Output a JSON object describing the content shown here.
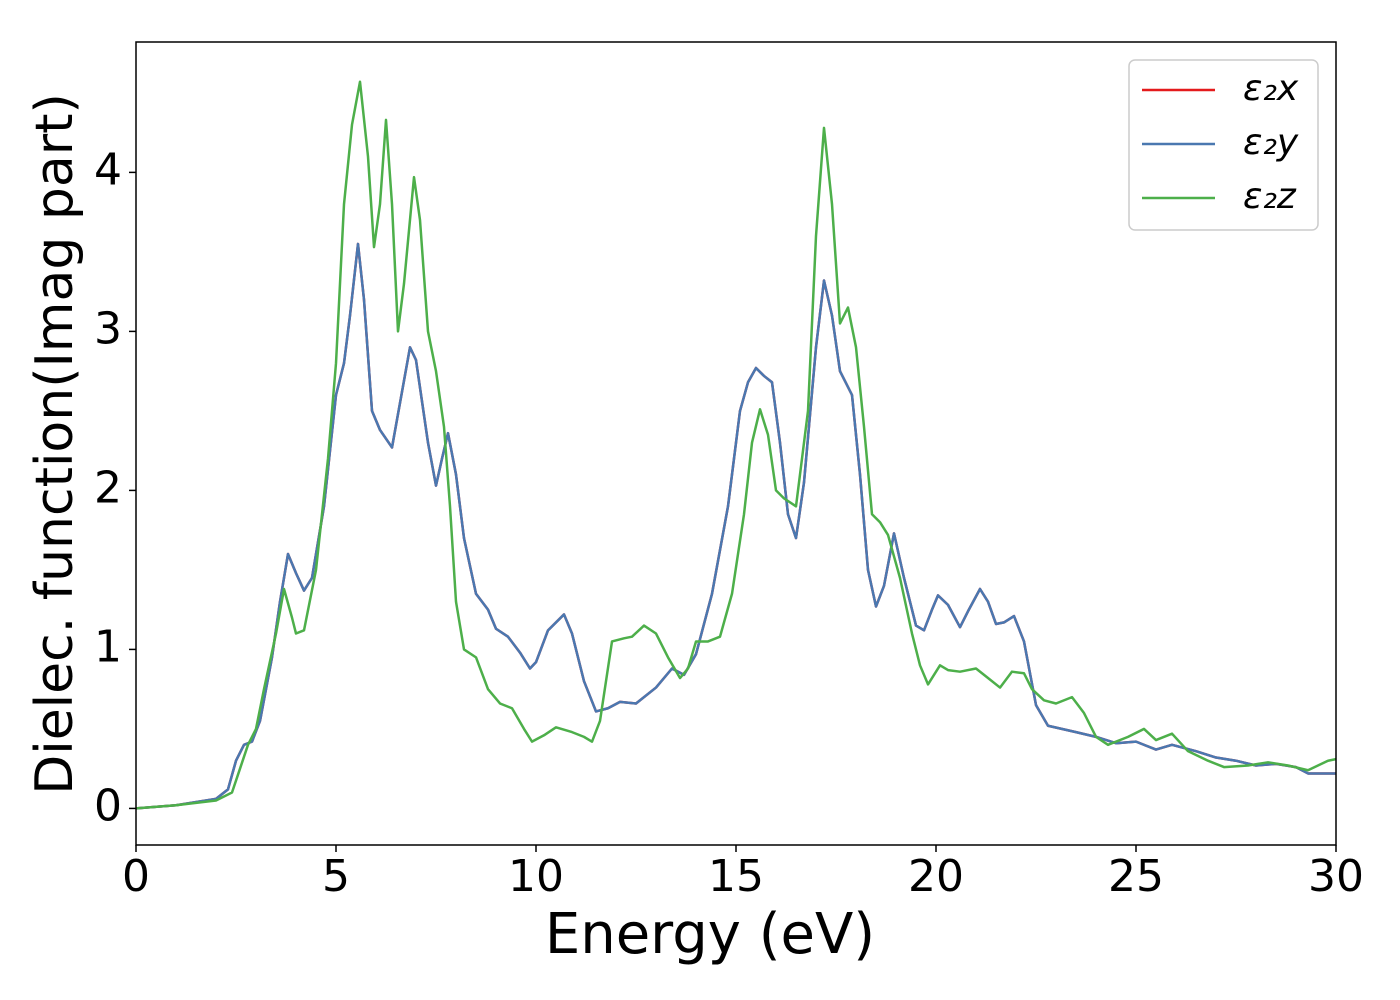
{
  "chart_data": {
    "type": "line",
    "xlabel": "Energy (eV)",
    "ylabel": "Dielec. function(Imag part)",
    "xlim": [
      0,
      30
    ],
    "ylim": [
      -0.23,
      4.82
    ],
    "xticks": [
      0,
      5,
      10,
      15,
      20,
      25,
      30
    ],
    "yticks": [
      0,
      1,
      2,
      3,
      4
    ],
    "grid": false,
    "legend": "upper right",
    "series": [
      {
        "name": "ε₂x",
        "color": "#e41a1c",
        "x": [
          0,
          1,
          2,
          2.3,
          2.5,
          2.7,
          2.9,
          3.1,
          3.4,
          3.6,
          3.8,
          4.0,
          4.2,
          4.4,
          4.7,
          5.0,
          5.2,
          5.35,
          5.55,
          5.7,
          5.9,
          6.1,
          6.4,
          6.6,
          6.85,
          7.0,
          7.3,
          7.5,
          7.65,
          7.8,
          8.0,
          8.2,
          8.5,
          8.8,
          9.0,
          9.3,
          9.6,
          9.85,
          10.0,
          10.3,
          10.7,
          10.9,
          11.2,
          11.5,
          11.8,
          12.1,
          12.5,
          13.0,
          13.4,
          13.7,
          14.0,
          14.4,
          14.8,
          15.1,
          15.3,
          15.5,
          15.7,
          15.9,
          16.1,
          16.3,
          16.5,
          16.7,
          17.0,
          17.2,
          17.4,
          17.6,
          17.9,
          18.1,
          18.3,
          18.5,
          18.7,
          18.95,
          19.2,
          19.5,
          19.7,
          19.9,
          20.05,
          20.3,
          20.6,
          20.8,
          21.1,
          21.3,
          21.5,
          21.7,
          21.95,
          22.2,
          22.5,
          22.8,
          23.5,
          24.0,
          24.5,
          25.0,
          25.5,
          25.9,
          26.5,
          27,
          27.5,
          28,
          28.5,
          29,
          29.3,
          30
        ],
        "values": [
          0,
          0.02,
          0.06,
          0.12,
          0.3,
          0.4,
          0.42,
          0.55,
          0.95,
          1.3,
          1.6,
          1.48,
          1.37,
          1.45,
          1.9,
          2.6,
          2.8,
          3.1,
          3.55,
          3.2,
          2.5,
          2.38,
          2.27,
          2.55,
          2.9,
          2.82,
          2.3,
          2.03,
          2.2,
          2.36,
          2.1,
          1.7,
          1.35,
          1.25,
          1.13,
          1.08,
          0.98,
          0.88,
          0.92,
          1.12,
          1.22,
          1.1,
          0.8,
          0.61,
          0.63,
          0.67,
          0.66,
          0.76,
          0.88,
          0.84,
          0.97,
          1.35,
          1.9,
          2.5,
          2.68,
          2.77,
          2.72,
          2.68,
          2.3,
          1.85,
          1.7,
          2.05,
          2.9,
          3.32,
          3.1,
          2.75,
          2.6,
          2.1,
          1.5,
          1.27,
          1.4,
          1.73,
          1.45,
          1.15,
          1.12,
          1.25,
          1.34,
          1.28,
          1.14,
          1.24,
          1.38,
          1.3,
          1.16,
          1.17,
          1.21,
          1.05,
          0.65,
          0.52,
          0.48,
          0.45,
          0.41,
          0.42,
          0.37,
          0.4,
          0.36,
          0.32,
          0.3,
          0.27,
          0.28,
          0.26,
          0.22,
          0.22
        ]
      },
      {
        "name": "ε₂y",
        "color": "#4a78b0",
        "x": [
          0,
          1,
          2,
          2.3,
          2.5,
          2.7,
          2.9,
          3.1,
          3.4,
          3.6,
          3.8,
          4.0,
          4.2,
          4.4,
          4.7,
          5.0,
          5.2,
          5.35,
          5.55,
          5.7,
          5.9,
          6.1,
          6.4,
          6.6,
          6.85,
          7.0,
          7.3,
          7.5,
          7.65,
          7.8,
          8.0,
          8.2,
          8.5,
          8.8,
          9.0,
          9.3,
          9.6,
          9.85,
          10.0,
          10.3,
          10.7,
          10.9,
          11.2,
          11.5,
          11.8,
          12.1,
          12.5,
          13.0,
          13.4,
          13.7,
          14.0,
          14.4,
          14.8,
          15.1,
          15.3,
          15.5,
          15.7,
          15.9,
          16.1,
          16.3,
          16.5,
          16.7,
          17.0,
          17.2,
          17.4,
          17.6,
          17.9,
          18.1,
          18.3,
          18.5,
          18.7,
          18.95,
          19.2,
          19.5,
          19.7,
          19.9,
          20.05,
          20.3,
          20.6,
          20.8,
          21.1,
          21.3,
          21.5,
          21.7,
          21.95,
          22.2,
          22.5,
          22.8,
          23.5,
          24.0,
          24.5,
          25.0,
          25.5,
          25.9,
          26.5,
          27,
          27.5,
          28,
          28.5,
          29,
          29.3,
          30
        ],
        "values": [
          0,
          0.02,
          0.06,
          0.12,
          0.3,
          0.4,
          0.42,
          0.55,
          0.95,
          1.3,
          1.6,
          1.48,
          1.37,
          1.45,
          1.9,
          2.6,
          2.8,
          3.1,
          3.55,
          3.2,
          2.5,
          2.38,
          2.27,
          2.55,
          2.9,
          2.82,
          2.3,
          2.03,
          2.2,
          2.36,
          2.1,
          1.7,
          1.35,
          1.25,
          1.13,
          1.08,
          0.98,
          0.88,
          0.92,
          1.12,
          1.22,
          1.1,
          0.8,
          0.61,
          0.63,
          0.67,
          0.66,
          0.76,
          0.88,
          0.84,
          0.97,
          1.35,
          1.9,
          2.5,
          2.68,
          2.77,
          2.72,
          2.68,
          2.3,
          1.85,
          1.7,
          2.05,
          2.9,
          3.32,
          3.1,
          2.75,
          2.6,
          2.1,
          1.5,
          1.27,
          1.4,
          1.73,
          1.45,
          1.15,
          1.12,
          1.25,
          1.34,
          1.28,
          1.14,
          1.24,
          1.38,
          1.3,
          1.16,
          1.17,
          1.21,
          1.05,
          0.65,
          0.52,
          0.48,
          0.45,
          0.41,
          0.42,
          0.37,
          0.4,
          0.36,
          0.32,
          0.3,
          0.27,
          0.28,
          0.26,
          0.22,
          0.22
        ]
      },
      {
        "name": "ε₂z",
        "color": "#4daf4a",
        "x": [
          0,
          1,
          2,
          2.4,
          2.6,
          2.8,
          3.0,
          3.2,
          3.5,
          3.7,
          3.9,
          4.0,
          4.2,
          4.5,
          4.8,
          5.0,
          5.2,
          5.4,
          5.6,
          5.8,
          5.95,
          6.1,
          6.25,
          6.4,
          6.55,
          6.7,
          6.95,
          7.1,
          7.3,
          7.5,
          7.7,
          7.85,
          8.0,
          8.2,
          8.5,
          8.8,
          9.1,
          9.4,
          9.7,
          9.9,
          10.2,
          10.5,
          10.9,
          11.2,
          11.4,
          11.6,
          11.9,
          12.2,
          12.4,
          12.7,
          13.0,
          13.3,
          13.6,
          13.8,
          14.0,
          14.3,
          14.6,
          14.9,
          15.2,
          15.4,
          15.6,
          15.8,
          16.0,
          16.2,
          16.5,
          16.8,
          17.0,
          17.2,
          17.4,
          17.6,
          17.8,
          18.0,
          18.2,
          18.4,
          18.6,
          18.8,
          19.1,
          19.4,
          19.6,
          19.8,
          20.1,
          20.3,
          20.6,
          21.0,
          21.3,
          21.6,
          21.9,
          22.2,
          22.4,
          22.7,
          23.0,
          23.4,
          23.7,
          24.0,
          24.3,
          24.8,
          25.2,
          25.5,
          25.9,
          26.3,
          26.8,
          27.2,
          27.8,
          28.3,
          28.8,
          29.3,
          29.8,
          30
        ],
        "values": [
          0,
          0.02,
          0.05,
          0.1,
          0.25,
          0.4,
          0.5,
          0.75,
          1.1,
          1.38,
          1.2,
          1.1,
          1.12,
          1.5,
          2.2,
          2.8,
          3.8,
          4.3,
          4.57,
          4.1,
          3.53,
          3.8,
          4.33,
          3.8,
          3.0,
          3.3,
          3.97,
          3.7,
          3.0,
          2.75,
          2.4,
          1.9,
          1.3,
          1.0,
          0.95,
          0.75,
          0.66,
          0.63,
          0.5,
          0.42,
          0.46,
          0.51,
          0.48,
          0.45,
          0.42,
          0.55,
          1.05,
          1.07,
          1.08,
          1.15,
          1.1,
          0.95,
          0.82,
          0.88,
          1.05,
          1.05,
          1.08,
          1.35,
          1.85,
          2.3,
          2.51,
          2.35,
          2.0,
          1.95,
          1.9,
          2.5,
          3.6,
          4.28,
          3.8,
          3.05,
          3.15,
          2.9,
          2.4,
          1.85,
          1.8,
          1.72,
          1.45,
          1.1,
          0.9,
          0.78,
          0.9,
          0.87,
          0.86,
          0.88,
          0.82,
          0.76,
          0.86,
          0.85,
          0.75,
          0.68,
          0.66,
          0.7,
          0.6,
          0.45,
          0.4,
          0.45,
          0.5,
          0.43,
          0.47,
          0.36,
          0.3,
          0.26,
          0.27,
          0.29,
          0.27,
          0.24,
          0.3,
          0.31
        ]
      }
    ]
  }
}
